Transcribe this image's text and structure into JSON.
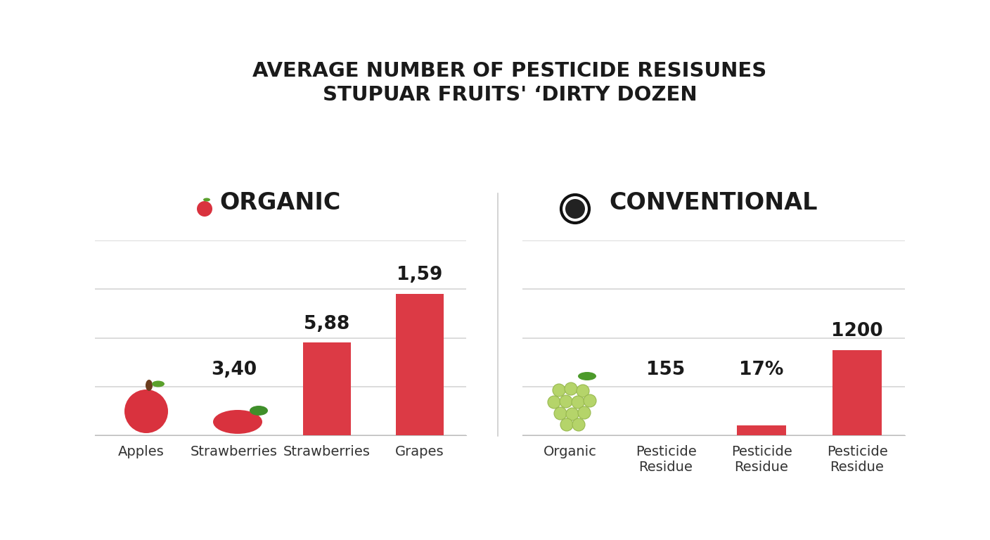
{
  "title": "AVERAGE NUMBER OF PESTICIDE RESISUNES\nSTUPUAR FRUITS' ‘DIRTY DOZEN",
  "chart_data": [
    {
      "type": "bar",
      "title": "ORGANIC",
      "categories": [
        "Apples",
        "Strawberries",
        "Strawberries",
        "Grapes"
      ],
      "values": [
        0,
        0,
        1.9,
        2.9
      ],
      "annotations": [
        null,
        "3,40",
        "5,88",
        "1,59"
      ],
      "color": "#dc3a45",
      "ylim": [
        0,
        4
      ],
      "yticks": [
        0,
        1,
        2,
        3,
        4
      ],
      "grid": true,
      "tick_labels": "x"
    },
    {
      "type": "bar",
      "title": "CONVENTIONAL",
      "categories": [
        "Organic",
        "Pesticide Residue",
        "Pesticide Residue",
        "Pesticide Residue"
      ],
      "values": [
        0,
        0,
        0.2,
        1.75
      ],
      "annotations": [
        null,
        "155",
        "17%",
        "1200"
      ],
      "color": "#dc3a45",
      "ylim": [
        0,
        4
      ],
      "yticks": [
        0,
        1,
        2,
        3,
        4
      ],
      "grid": true,
      "tick_labels": "x"
    }
  ]
}
